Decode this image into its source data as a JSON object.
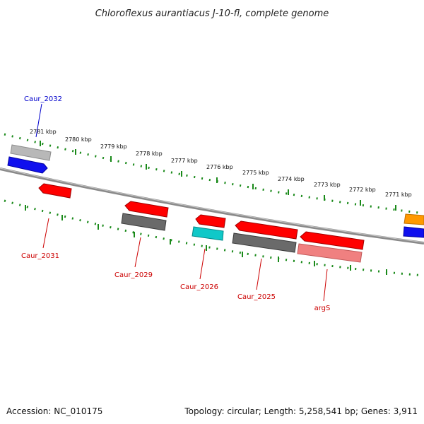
{
  "title": "Chloroflexus aurantiacus J-10-fl, complete genome",
  "footer": {
    "accession": "Accession: NC_010175",
    "summary": "Topology: circular; Length: 5,258,541 bp; Genes: 3,911"
  },
  "colors": {
    "backbone": "#8a8a8a",
    "ruler": "#1a8a1a",
    "label_red": "#cc0000",
    "label_blue": "#0000cc",
    "red_gene": "#ff0000",
    "gray_gene": "#6a6a6a",
    "light_gray_gene": "#c0c0c0",
    "blue_gene": "#1010ee",
    "cyan_gene": "#10c8c8",
    "pink_gene": "#f08080",
    "orange_gene": "#ff9900"
  },
  "kbp_ticks": [
    "2781 kbp",
    "2780 kbp",
    "2779 kbp",
    "2778 kbp",
    "2777 kbp",
    "2776 kbp",
    "2775 kbp",
    "2774 kbp",
    "2773 kbp",
    "2772 kbp",
    "2771 kbp"
  ],
  "gene_labels": [
    {
      "text": "Caur_2032",
      "color": "blue"
    },
    {
      "text": "Caur_2031",
      "color": "red"
    },
    {
      "text": "Caur_2029",
      "color": "red"
    },
    {
      "text": "Caur_2026",
      "color": "red"
    },
    {
      "text": "Caur_2025",
      "color": "red"
    },
    {
      "text": "argS",
      "color": "red"
    }
  ]
}
